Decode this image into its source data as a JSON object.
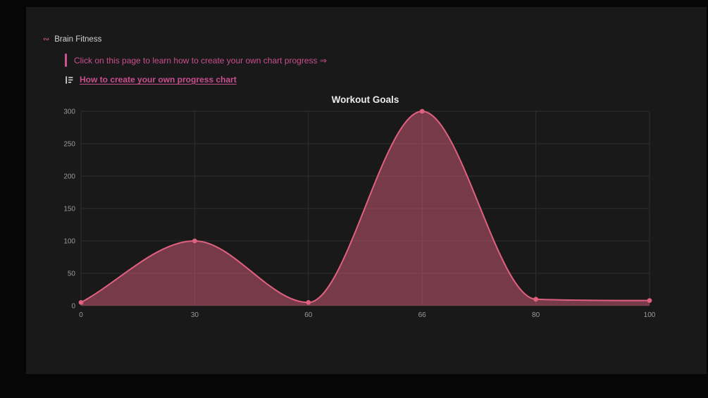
{
  "page": {
    "breadcrumb": "Brain Fitness",
    "callout_text": "Click on this page to learn how to create your own chart progress ⇒",
    "link_label": "How to create your own progress chart"
  },
  "colors": {
    "accent_pink": "#c94f8e",
    "line": "#e0607f",
    "fill": "rgba(224,96,127,0.47)",
    "grid": "#2e2e2e",
    "tick": "#9a9a9a",
    "title": "#ebebeb",
    "panel_bg": "#191919",
    "outer_bg": "#060606"
  },
  "chart_data": {
    "type": "area",
    "title": "Workout Goals",
    "categories": [
      "0",
      "30",
      "60",
      "66",
      "80",
      "100"
    ],
    "values": [
      5,
      100,
      5,
      300,
      10,
      8
    ],
    "xlabel": "",
    "ylabel": "",
    "ylim": [
      0,
      300
    ],
    "yticks": [
      0,
      50,
      100,
      150,
      200,
      250,
      300
    ],
    "grid": true,
    "legend": "none",
    "marker": "circle",
    "smooth": true
  }
}
